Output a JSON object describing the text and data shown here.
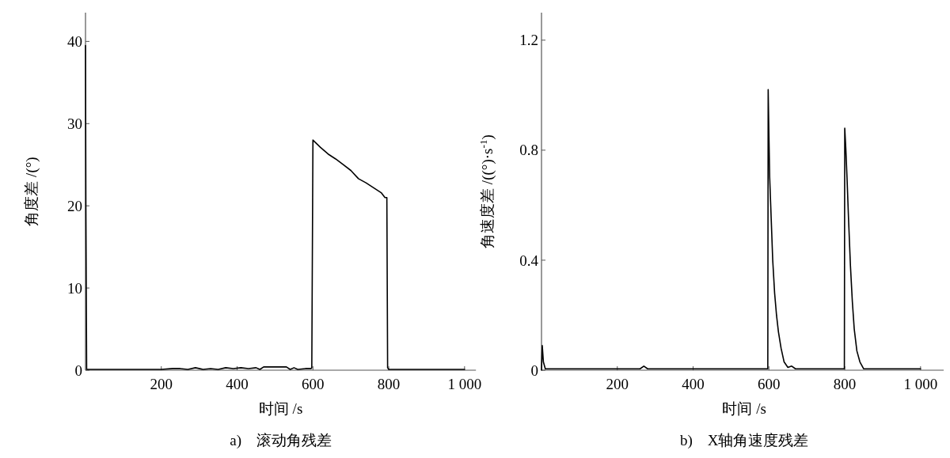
{
  "chart_data": [
    {
      "type": "line",
      "title": "a)　滚动角残差",
      "xlabel": "时间 /s",
      "ylabel": "角度差 /(°)",
      "xlim": [
        0,
        1030
      ],
      "ylim": [
        0,
        43.5
      ],
      "xticks": [
        200,
        400,
        600,
        800,
        {
          "value": 1000,
          "label": "1 000"
        }
      ],
      "yticks": [
        0,
        10,
        20,
        30,
        40
      ],
      "grid": false,
      "marker": "none",
      "line_style": "solid",
      "series": [
        {
          "color": "#000000",
          "x": [
            0,
            1,
            3,
            50,
            100,
            200,
            230,
            250,
            270,
            290,
            310,
            330,
            350,
            370,
            390,
            410,
            430,
            450,
            460,
            470,
            500,
            530,
            540,
            550,
            560,
            580,
            595,
            597,
            600,
            620,
            640,
            660,
            680,
            700,
            720,
            740,
            760,
            780,
            790,
            795,
            797,
            800,
            850,
            900,
            1000
          ],
          "values": [
            39.5,
            20,
            0.1,
            0.1,
            0.1,
            0.1,
            0.2,
            0.2,
            0.1,
            0.3,
            0.1,
            0.2,
            0.1,
            0.3,
            0.2,
            0.3,
            0.2,
            0.3,
            0.1,
            0.4,
            0.4,
            0.4,
            0.1,
            0.3,
            0.1,
            0.2,
            0.2,
            0.3,
            28,
            27.1,
            26.3,
            25.7,
            25,
            24.3,
            23.3,
            22.8,
            22.2,
            21.6,
            21,
            21,
            0.3,
            0.1,
            0.1,
            0.1,
            0.1
          ]
        }
      ]
    },
    {
      "type": "line",
      "title": "b)　X轴角速度残差",
      "xlabel": "时间 /s",
      "ylabel": "角速度差 /((°)·s$^{-1}$)",
      "xlim": [
        0,
        1070
      ],
      "ylim": [
        0,
        1.3
      ],
      "xticks": [
        200,
        400,
        600,
        800,
        {
          "value": 1000,
          "label": "1 000"
        }
      ],
      "yticks": [
        0,
        0.4,
        0.8,
        1.2
      ],
      "grid": false,
      "marker": "none",
      "line_style": "solid",
      "series": [
        {
          "color": "#000000",
          "x": [
            0,
            2,
            5,
            10,
            100,
            260,
            270,
            280,
            400,
            500,
            597,
            598,
            600,
            602,
            606,
            610,
            615,
            620,
            625,
            632,
            640,
            650,
            660,
            670,
            700,
            797,
            799,
            800,
            803,
            806,
            810,
            815,
            820,
            825,
            832,
            840,
            850,
            900,
            1000
          ],
          "values": [
            0,
            0.09,
            0.03,
            0.005,
            0.005,
            0.005,
            0.015,
            0.005,
            0.005,
            0.005,
            0.005,
            1.02,
            0.85,
            0.7,
            0.55,
            0.4,
            0.28,
            0.2,
            0.14,
            0.08,
            0.03,
            0.01,
            0.015,
            0.005,
            0.005,
            0.005,
            0.005,
            0.88,
            0.8,
            0.7,
            0.55,
            0.38,
            0.25,
            0.15,
            0.07,
            0.03,
            0.005,
            0.005,
            0.005
          ]
        }
      ]
    }
  ]
}
